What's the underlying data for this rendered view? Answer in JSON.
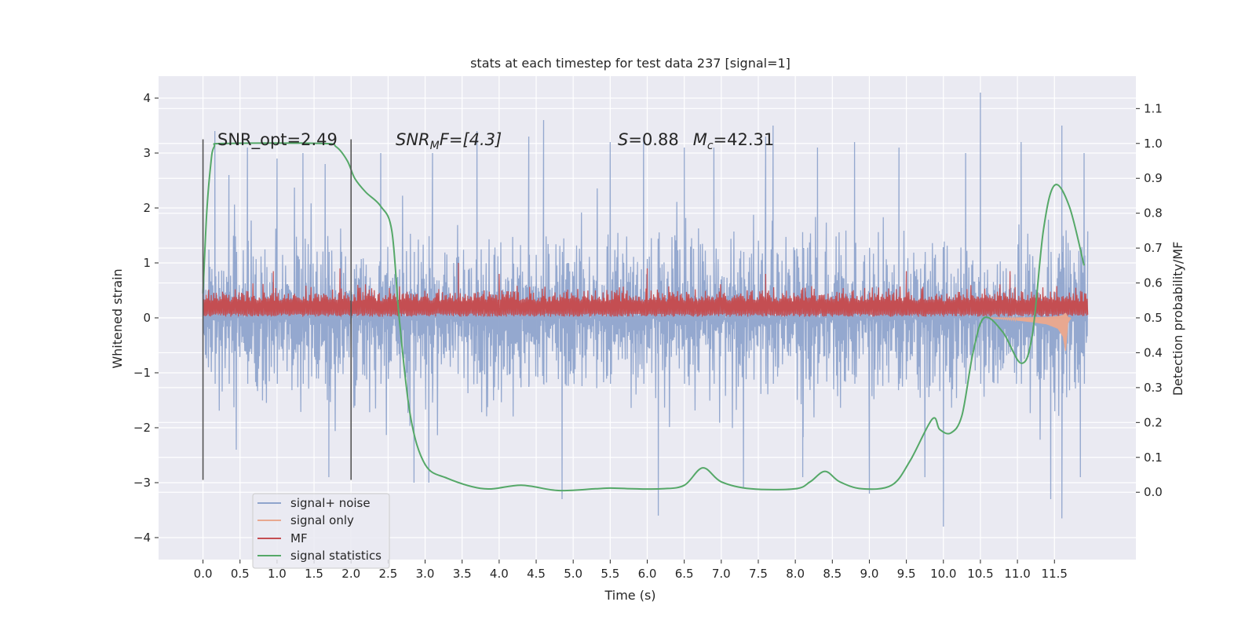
{
  "chart_data": {
    "type": "line",
    "title": "stats at each timestep for test data 237 [signal=1]",
    "xlabel": "Time (s)",
    "ylabel_left": "Whitened strain",
    "ylabel_right": "Detection probability/MF",
    "xlim": [
      -0.6,
      12.6
    ],
    "ylim_left": [
      -4.4,
      4.4
    ],
    "ylim_right": [
      -0.193,
      1.193
    ],
    "x_ticks": [
      "0.0",
      "0.5",
      "1.0",
      "1.5",
      "2.0",
      "2.5",
      "3.0",
      "3.5",
      "4.0",
      "4.5",
      "5.0",
      "5.5",
      "6.0",
      "6.5",
      "7.0",
      "7.5",
      "8.0",
      "8.5",
      "9.0",
      "9.5",
      "10.0",
      "10.5",
      "11.0",
      "11.5"
    ],
    "y_ticks_left": [
      "−4",
      "−3",
      "−2",
      "−1",
      "0",
      "1",
      "2",
      "3",
      "4"
    ],
    "y_ticks_right": [
      "0.0",
      "0.1",
      "0.2",
      "0.3",
      "0.4",
      "0.5",
      "0.6",
      "0.7",
      "0.8",
      "0.9",
      "1.0",
      "1.1"
    ],
    "grid": true,
    "legend_position": "lower-left",
    "annotations": [
      {
        "text": "SNR_opt=2.49"
      },
      {
        "text_main": "SNR",
        "text_sub": "M",
        "text_after": "F=[4.3]"
      },
      {
        "text_S": "S",
        "text_S_val": "=0.88",
        "text_M": "M",
        "text_M_sub": "c",
        "text_M_val": "=42.31"
      }
    ],
    "vertical_markers": [
      0.0,
      2.0
    ],
    "marker_span_left": [
      -2.95,
      3.25
    ],
    "series": [
      {
        "name": "signal+ noise",
        "axis": "left",
        "color": "#8fa4cc",
        "kind": "noise",
        "time_range": [
          0.0,
          11.95
        ],
        "peaks_positive": [
          [
            0.16,
            3.4
          ],
          [
            0.35,
            2.6
          ],
          [
            0.6,
            3.1
          ],
          [
            1.0,
            2.9
          ],
          [
            1.35,
            3.0
          ],
          [
            1.65,
            2.8
          ],
          [
            2.4,
            3.0
          ],
          [
            3.1,
            3.0
          ],
          [
            3.7,
            3.4
          ],
          [
            4.4,
            3.3
          ],
          [
            4.6,
            3.6
          ],
          [
            5.5,
            3.2
          ],
          [
            5.95,
            3.3
          ],
          [
            6.5,
            3.1
          ],
          [
            6.9,
            3.1
          ],
          [
            7.6,
            3.3
          ],
          [
            7.7,
            3.5
          ],
          [
            8.3,
            3.1
          ],
          [
            8.8,
            3.2
          ],
          [
            9.4,
            3.1
          ],
          [
            10.3,
            3.0
          ],
          [
            10.5,
            4.1
          ],
          [
            11.05,
            3.2
          ],
          [
            11.6,
            3.5
          ],
          [
            11.9,
            3.0
          ]
        ],
        "peaks_negative": [
          [
            0.45,
            -2.4
          ],
          [
            1.7,
            -2.9
          ],
          [
            2.85,
            -3.0
          ],
          [
            3.05,
            -3.0
          ],
          [
            4.85,
            -3.3
          ],
          [
            6.15,
            -3.6
          ],
          [
            7.3,
            -3.1
          ],
          [
            8.1,
            -2.9
          ],
          [
            9.0,
            -3.2
          ],
          [
            9.75,
            -2.9
          ],
          [
            10.0,
            -3.8
          ],
          [
            11.45,
            -3.3
          ],
          [
            11.6,
            -3.65
          ],
          [
            11.85,
            -2.9
          ]
        ]
      },
      {
        "name": "signal only",
        "axis": "left",
        "color": "#e8a890",
        "kind": "chirp",
        "points": [
          [
            10.6,
            0.0
          ],
          [
            11.0,
            -0.05
          ],
          [
            11.2,
            -0.08
          ],
          [
            11.4,
            -0.12
          ],
          [
            11.55,
            -0.2
          ],
          [
            11.62,
            -0.35
          ],
          [
            11.65,
            -0.6
          ],
          [
            11.68,
            -0.1
          ],
          [
            11.72,
            0.0
          ]
        ]
      },
      {
        "name": "MF",
        "axis": "left",
        "color": "#c44e52",
        "kind": "noise-positive",
        "time_range": [
          0.0,
          11.95
        ],
        "peaks": [
          [
            0.95,
            0.85
          ],
          [
            1.85,
            0.9
          ],
          [
            3.45,
            1.0
          ],
          [
            4.0,
            0.8
          ],
          [
            6.0,
            0.9
          ],
          [
            7.6,
            0.8
          ],
          [
            9.5,
            0.85
          ],
          [
            10.9,
            0.85
          ]
        ]
      },
      {
        "name": "signal statistics",
        "axis": "right",
        "color": "#55a868",
        "kind": "line",
        "points": [
          [
            0.0,
            0.57
          ],
          [
            0.05,
            0.8
          ],
          [
            0.1,
            0.93
          ],
          [
            0.15,
            0.99
          ],
          [
            0.3,
            1.0
          ],
          [
            1.6,
            1.0
          ],
          [
            1.8,
            0.99
          ],
          [
            1.95,
            0.95
          ],
          [
            2.05,
            0.9
          ],
          [
            2.2,
            0.86
          ],
          [
            2.4,
            0.82
          ],
          [
            2.55,
            0.75
          ],
          [
            2.65,
            0.5
          ],
          [
            2.8,
            0.22
          ],
          [
            3.0,
            0.08
          ],
          [
            3.3,
            0.04
          ],
          [
            3.8,
            0.01
          ],
          [
            4.3,
            0.02
          ],
          [
            4.8,
            0.005
          ],
          [
            5.3,
            0.01
          ],
          [
            5.5,
            0.012
          ],
          [
            5.8,
            0.01
          ],
          [
            6.2,
            0.01
          ],
          [
            6.5,
            0.02
          ],
          [
            6.75,
            0.07
          ],
          [
            7.0,
            0.03
          ],
          [
            7.4,
            0.01
          ],
          [
            8.0,
            0.01
          ],
          [
            8.2,
            0.03
          ],
          [
            8.4,
            0.06
          ],
          [
            8.6,
            0.03
          ],
          [
            8.9,
            0.01
          ],
          [
            9.3,
            0.02
          ],
          [
            9.55,
            0.09
          ],
          [
            9.85,
            0.21
          ],
          [
            9.95,
            0.18
          ],
          [
            10.1,
            0.17
          ],
          [
            10.25,
            0.22
          ],
          [
            10.4,
            0.4
          ],
          [
            10.55,
            0.5
          ],
          [
            10.8,
            0.46
          ],
          [
            11.05,
            0.37
          ],
          [
            11.2,
            0.45
          ],
          [
            11.35,
            0.75
          ],
          [
            11.5,
            0.88
          ],
          [
            11.7,
            0.82
          ],
          [
            11.9,
            0.65
          ]
        ]
      }
    ]
  }
}
